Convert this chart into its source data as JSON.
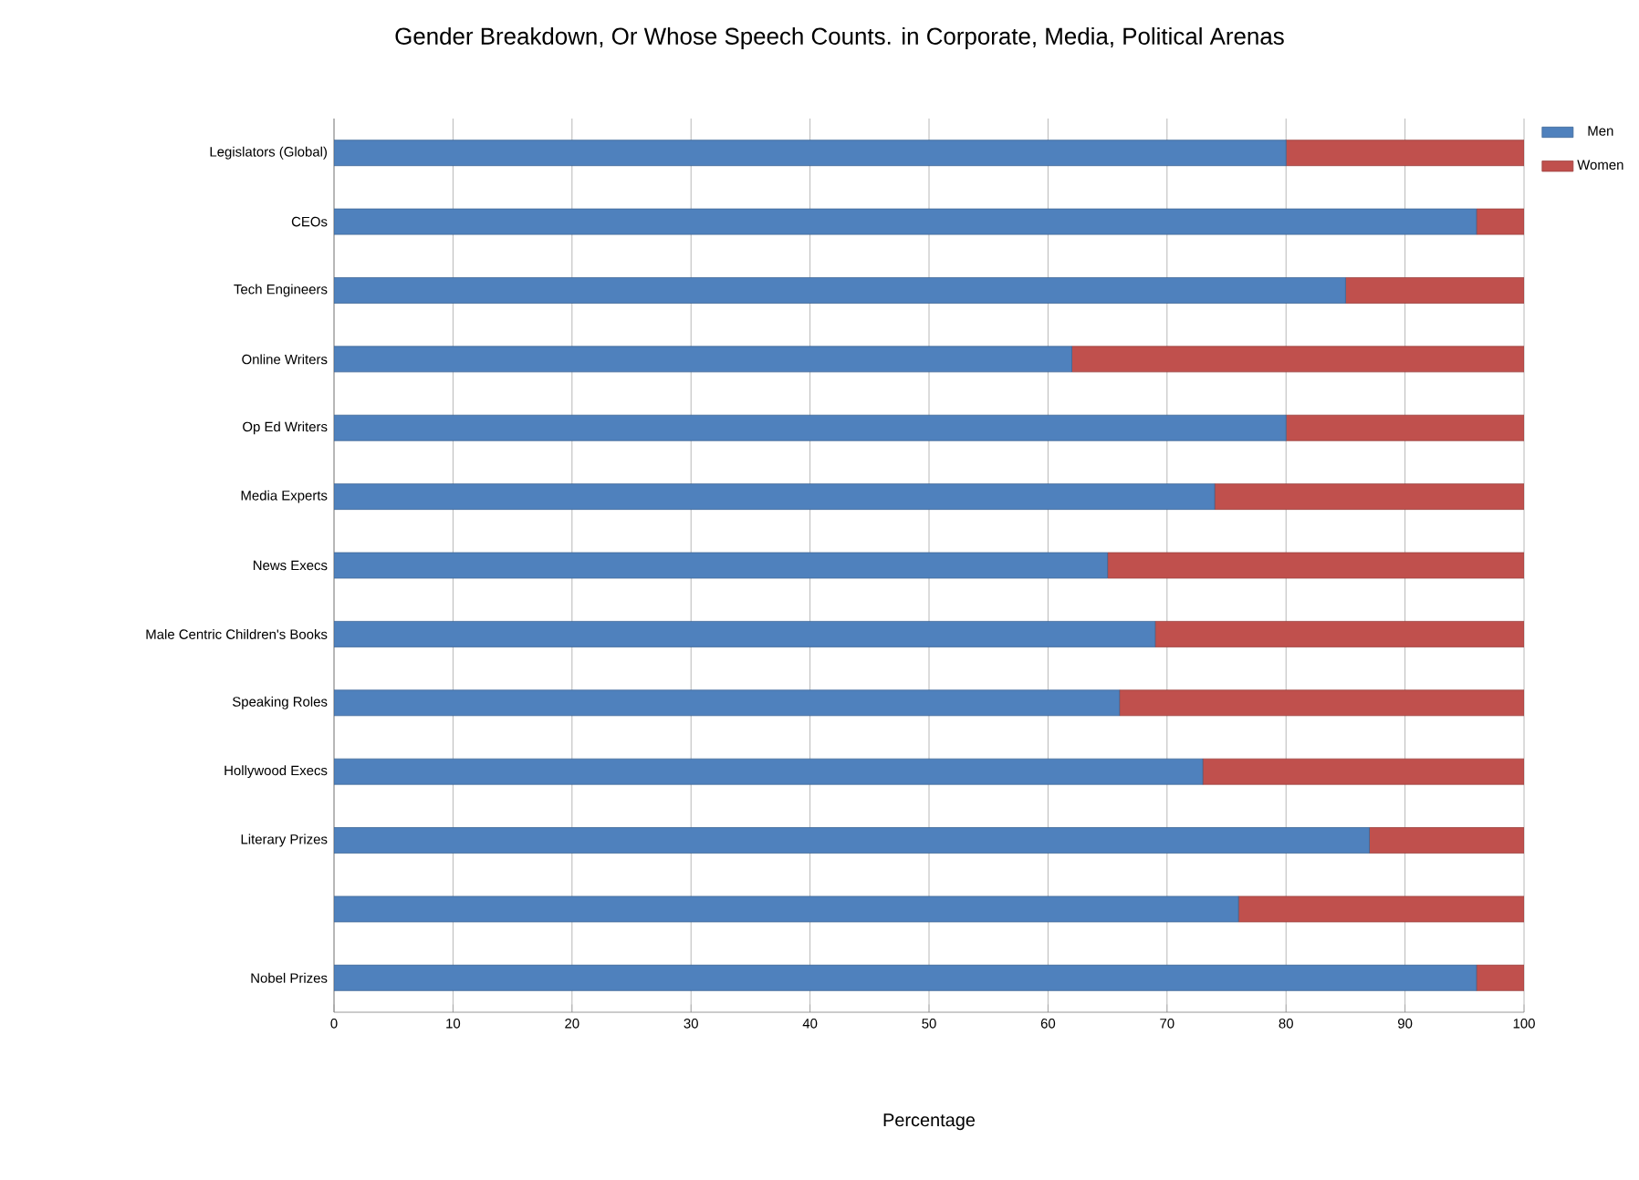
{
  "chart_data": {
    "type": "bar",
    "orientation": "horizontal",
    "stacked": true,
    "title": "Gender Breakdown, Or Whose Speech Counts. in Corporate, Media, Political Arenas",
    "xlabel": "Percentage",
    "categories": [
      "Legislators (Global)",
      "CEOs",
      "Tech Engineers",
      "Online Writers",
      "Op Ed Writers",
      "Media Experts",
      "News Execs",
      "Male Centric Children's Books",
      "Speaking Roles",
      "Hollywood Execs",
      "Literary Prizes",
      null,
      "Nobel Prizes"
    ],
    "series": [
      {
        "name": "Men",
        "color": "#4f81bd",
        "values": [
          80,
          96,
          85,
          62,
          80,
          74,
          65,
          69,
          66,
          73,
          87,
          76,
          96
        ]
      },
      {
        "name": "Women",
        "color": "#c0504d",
        "values": [
          20,
          4,
          15,
          38,
          20,
          26,
          35,
          31,
          34,
          27,
          13,
          24,
          4
        ]
      }
    ],
    "xlim": [
      0,
      100
    ],
    "xticks": [
      0,
      10,
      20,
      30,
      40,
      50,
      60,
      70,
      80,
      90,
      100
    ],
    "grid": "x",
    "legend": "top right"
  }
}
